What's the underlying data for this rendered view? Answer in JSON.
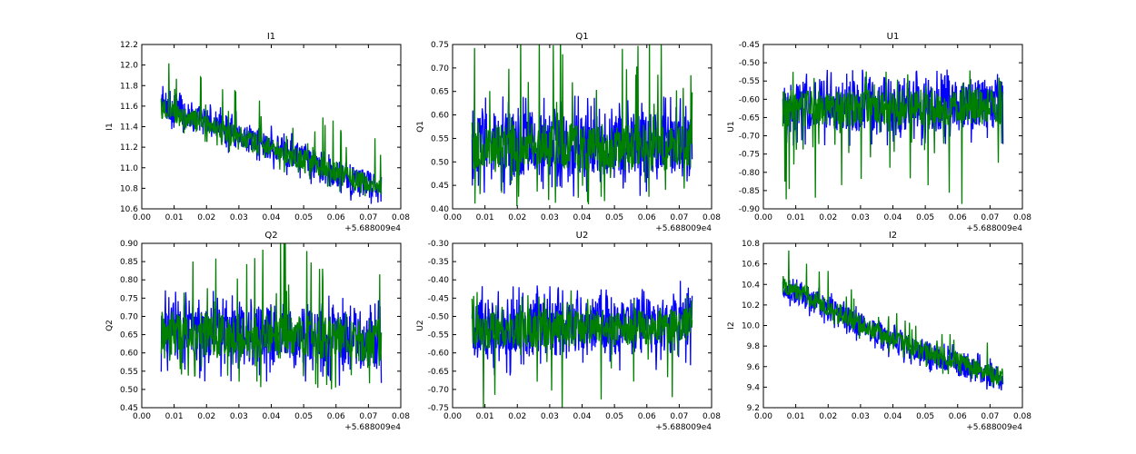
{
  "chart_data": [
    {
      "type": "line",
      "title": "I1",
      "ylabel": "I1",
      "x_offset_label": "+5.688009e4",
      "xlim": [
        0.0,
        0.08
      ],
      "ylim": [
        10.6,
        12.2
      ],
      "xticks": [
        "0.00",
        "0.01",
        "0.02",
        "0.03",
        "0.04",
        "0.05",
        "0.06",
        "0.07",
        "0.08"
      ],
      "yticks": [
        "10.6",
        "10.8",
        "11.0",
        "11.2",
        "11.4",
        "11.6",
        "11.8",
        "12.0",
        "12.2"
      ],
      "x_range": [
        0.006,
        0.074
      ],
      "series": [
        {
          "color": "#0000ff",
          "trend": [
            [
              0.006,
              11.62
            ],
            [
              0.074,
              10.78
            ]
          ],
          "band": 0.14,
          "spike_max": 0.08,
          "spike_min": -0.08
        },
        {
          "color": "#008000",
          "trend": [
            [
              0.006,
              11.58
            ],
            [
              0.074,
              10.8
            ]
          ],
          "band": 0.1,
          "spike_max": 0.4,
          "spike_min": -0.1
        }
      ]
    },
    {
      "type": "line",
      "title": "Q1",
      "ylabel": "Q1",
      "x_offset_label": "+5.688009e4",
      "xlim": [
        0.0,
        0.08
      ],
      "ylim": [
        0.4,
        0.75
      ],
      "xticks": [
        "0.00",
        "0.01",
        "0.02",
        "0.03",
        "0.04",
        "0.05",
        "0.06",
        "0.07",
        "0.08"
      ],
      "yticks": [
        "0.40",
        "0.45",
        "0.50",
        "0.55",
        "0.60",
        "0.65",
        "0.70",
        "0.75"
      ],
      "x_range": [
        0.006,
        0.074
      ],
      "series": [
        {
          "color": "#0000ff",
          "trend": [
            [
              0.006,
              0.54
            ],
            [
              0.074,
              0.53
            ]
          ],
          "band": 0.07,
          "spike_max": 0.04,
          "spike_min": -0.04
        },
        {
          "color": "#008000",
          "trend": [
            [
              0.006,
              0.535
            ],
            [
              0.074,
              0.53
            ]
          ],
          "band": 0.05,
          "spike_max": 0.2,
          "spike_min": -0.08
        }
      ]
    },
    {
      "type": "line",
      "title": "U1",
      "ylabel": "U1",
      "x_offset_label": "+5.688009e4",
      "xlim": [
        0.0,
        0.08
      ],
      "ylim": [
        -0.9,
        -0.45
      ],
      "xticks": [
        "0.00",
        "0.01",
        "0.02",
        "0.03",
        "0.04",
        "0.05",
        "0.06",
        "0.07",
        "0.08"
      ],
      "yticks": [
        "-0.90",
        "-0.85",
        "-0.80",
        "-0.75",
        "-0.70",
        "-0.65",
        "-0.60",
        "-0.55",
        "-0.50",
        "-0.45"
      ],
      "x_range": [
        0.006,
        0.074
      ],
      "series": [
        {
          "color": "#0000ff",
          "trend": [
            [
              0.006,
              -0.62
            ],
            [
              0.074,
              -0.615
            ]
          ],
          "band": 0.07,
          "spike_max": 0.03,
          "spike_min": -0.04
        },
        {
          "color": "#008000",
          "trend": [
            [
              0.006,
              -0.625
            ],
            [
              0.074,
              -0.62
            ]
          ],
          "band": 0.05,
          "spike_max": 0.05,
          "spike_min": -0.22
        }
      ]
    },
    {
      "type": "line",
      "title": "Q2",
      "ylabel": "Q2",
      "x_offset_label": "+5.688009e4",
      "xlim": [
        0.0,
        0.08
      ],
      "ylim": [
        0.45,
        0.9
      ],
      "xticks": [
        "0.00",
        "0.01",
        "0.02",
        "0.03",
        "0.04",
        "0.05",
        "0.06",
        "0.07",
        "0.08"
      ],
      "yticks": [
        "0.45",
        "0.50",
        "0.55",
        "0.60",
        "0.65",
        "0.70",
        "0.75",
        "0.80",
        "0.85",
        "0.90"
      ],
      "x_range": [
        0.006,
        0.074
      ],
      "series": [
        {
          "color": "#0000ff",
          "trend": [
            [
              0.006,
              0.655
            ],
            [
              0.074,
              0.635
            ]
          ],
          "band": 0.08,
          "spike_max": 0.04,
          "spike_min": -0.05
        },
        {
          "color": "#008000",
          "trend": [
            [
              0.006,
              0.655
            ],
            [
              0.074,
              0.635
            ]
          ],
          "band": 0.06,
          "spike_max": 0.22,
          "spike_min": -0.08
        }
      ]
    },
    {
      "type": "line",
      "title": "U2",
      "ylabel": "U2",
      "x_offset_label": "+5.688009e4",
      "xlim": [
        0.0,
        0.08
      ],
      "ylim": [
        -0.75,
        -0.3
      ],
      "xticks": [
        "0.00",
        "0.01",
        "0.02",
        "0.03",
        "0.04",
        "0.05",
        "0.06",
        "0.07",
        "0.08"
      ],
      "yticks": [
        "-0.75",
        "-0.70",
        "-0.65",
        "-0.60",
        "-0.55",
        "-0.50",
        "-0.45",
        "-0.40",
        "-0.35",
        "-0.30"
      ],
      "x_range": [
        0.006,
        0.074
      ],
      "series": [
        {
          "color": "#0000ff",
          "trend": [
            [
              0.006,
              -0.535
            ],
            [
              0.074,
              -0.52
            ]
          ],
          "band": 0.08,
          "spike_max": 0.04,
          "spike_min": -0.05
        },
        {
          "color": "#008000",
          "trend": [
            [
              0.006,
              -0.54
            ],
            [
              0.074,
              -0.525
            ]
          ],
          "band": 0.05,
          "spike_max": 0.06,
          "spike_min": -0.2
        }
      ]
    },
    {
      "type": "line",
      "title": "I2",
      "ylabel": "I2",
      "x_offset_label": "+5.688009e4",
      "xlim": [
        0.0,
        0.08
      ],
      "ylim": [
        9.2,
        10.8
      ],
      "xticks": [
        "0.00",
        "0.01",
        "0.02",
        "0.03",
        "0.04",
        "0.05",
        "0.06",
        "0.07",
        "0.08"
      ],
      "yticks": [
        "9.2",
        "9.4",
        "9.6",
        "9.8",
        "10.0",
        "10.2",
        "10.4",
        "10.6",
        "10.8"
      ],
      "x_range": [
        0.006,
        0.074
      ],
      "series": [
        {
          "color": "#0000ff",
          "trend": [
            [
              0.006,
              10.38
            ],
            [
              0.04,
              9.85
            ],
            [
              0.074,
              9.48
            ]
          ],
          "band": 0.12,
          "spike_max": 0.05,
          "spike_min": -0.06
        },
        {
          "color": "#008000",
          "trend": [
            [
              0.006,
              10.4
            ],
            [
              0.04,
              9.86
            ],
            [
              0.074,
              9.5
            ]
          ],
          "band": 0.09,
          "spike_max": 0.28,
          "spike_min": -0.08
        }
      ]
    }
  ]
}
